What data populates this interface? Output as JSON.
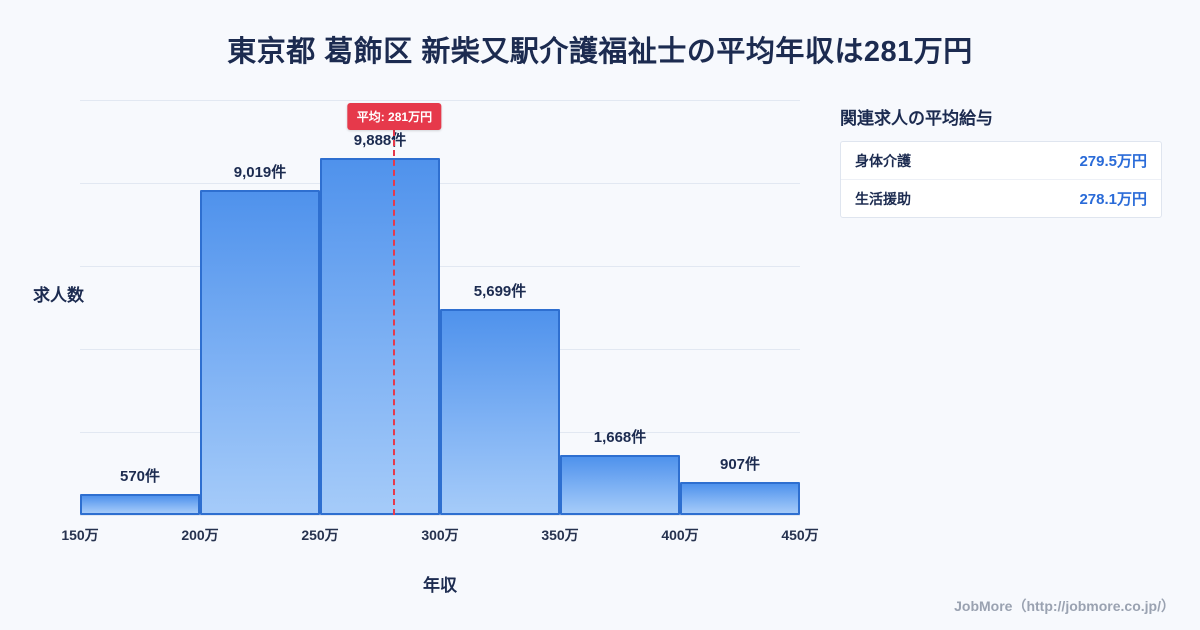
{
  "page": {
    "title": "東京都 葛飾区 新柴又駅介護福祉士の平均年収は281万円",
    "footer": "JobMore（http://jobmore.co.jp/）"
  },
  "chart_data": {
    "type": "bar",
    "title": "東京都 葛飾区 新柴又駅介護福祉士の平均年収は281万円",
    "xlabel": "年収",
    "ylabel": "求人数",
    "bin_edges_man": [
      150,
      200,
      250,
      300,
      350,
      400,
      450
    ],
    "tick_labels": [
      "150万",
      "200万",
      "250万",
      "300万",
      "350万",
      "400万",
      "450万"
    ],
    "values": [
      570,
      9019,
      9888,
      5699,
      1668,
      907
    ],
    "value_labels": [
      "570件",
      "9,019件",
      "9,888件",
      "5,699件",
      "1,668件",
      "907件"
    ],
    "ylim": [
      0,
      11500
    ],
    "grid": true,
    "legend": "none",
    "average": {
      "label": "平均: 281万円",
      "value_man": 281
    },
    "colors": {
      "bar_top": "#4f92ec",
      "bar_bottom": "#a5cbf9",
      "bar_border": "#2e6fd0",
      "average_line": "#e6394b",
      "value_text": "#2a6bd8",
      "title_text": "#1c2b50"
    }
  },
  "sidebar": {
    "heading": "関連求人の平均給与",
    "rows": [
      {
        "label": "身体介護",
        "value": "279.5万円"
      },
      {
        "label": "生活援助",
        "value": "278.1万円"
      }
    ]
  }
}
